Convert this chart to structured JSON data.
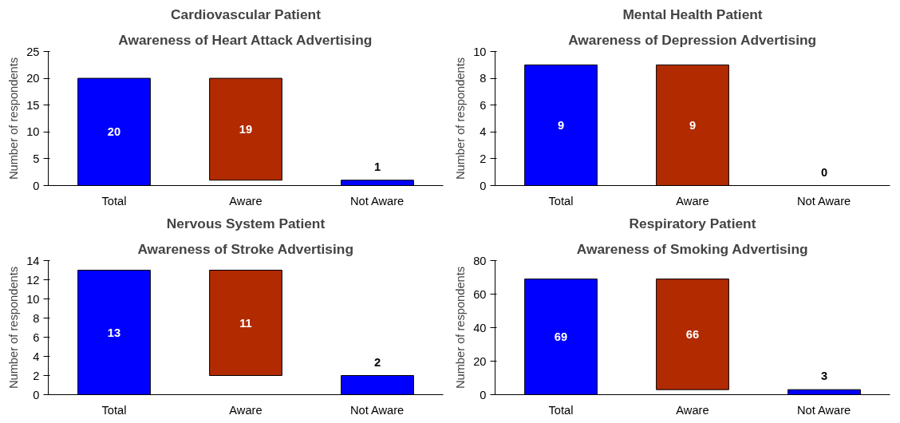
{
  "chart_data": [
    {
      "type": "bar",
      "title": "Cardiovascular Patient",
      "subtitle": "Awareness of Heart Attack Advertising",
      "ylabel": "Number of respondents",
      "categories": [
        "Total",
        "Aware",
        "Not Aware"
      ],
      "values": [
        20,
        19,
        1
      ],
      "base": [
        0,
        1,
        0
      ],
      "colors": [
        "#0000ff",
        "#b22a00",
        "#0000ff"
      ],
      "ylim": [
        0,
        25
      ],
      "yticks": [
        0,
        5,
        10,
        15,
        20,
        25
      ],
      "data_labels": true,
      "grid": false
    },
    {
      "type": "bar",
      "title": "Mental Health Patient",
      "subtitle": "Awareness of Depression Advertising",
      "ylabel": "Number of respondents",
      "categories": [
        "Total",
        "Aware",
        "Not Aware"
      ],
      "values": [
        9,
        9,
        0
      ],
      "base": [
        0,
        0,
        0
      ],
      "colors": [
        "#0000ff",
        "#b22a00",
        "#000000"
      ],
      "ylim": [
        0,
        10
      ],
      "yticks": [
        0,
        2,
        4,
        6,
        8,
        10
      ],
      "data_labels": true,
      "grid": false
    },
    {
      "type": "bar",
      "title": "Nervous System Patient",
      "subtitle": "Awareness of Stroke Advertising",
      "ylabel": "Number of respondents",
      "categories": [
        "Total",
        "Aware",
        "Not Aware"
      ],
      "values": [
        13,
        11,
        2
      ],
      "base": [
        0,
        2,
        0
      ],
      "colors": [
        "#0000ff",
        "#b22a00",
        "#0000ff"
      ],
      "ylim": [
        0,
        14
      ],
      "yticks": [
        0,
        2,
        4,
        6,
        8,
        10,
        12,
        14
      ],
      "data_labels": true,
      "grid": false
    },
    {
      "type": "bar",
      "title": "Respiratory Patient",
      "subtitle": "Awareness of Smoking Advertising",
      "ylabel": "Number of respondents",
      "categories": [
        "Total",
        "Aware",
        "Not Aware"
      ],
      "values": [
        69,
        66,
        3
      ],
      "base": [
        0,
        3,
        0
      ],
      "colors": [
        "#0000ff",
        "#b22a00",
        "#0000ff"
      ],
      "ylim": [
        0,
        80
      ],
      "yticks": [
        0,
        20,
        40,
        60,
        80
      ],
      "data_labels": true,
      "grid": false
    }
  ]
}
